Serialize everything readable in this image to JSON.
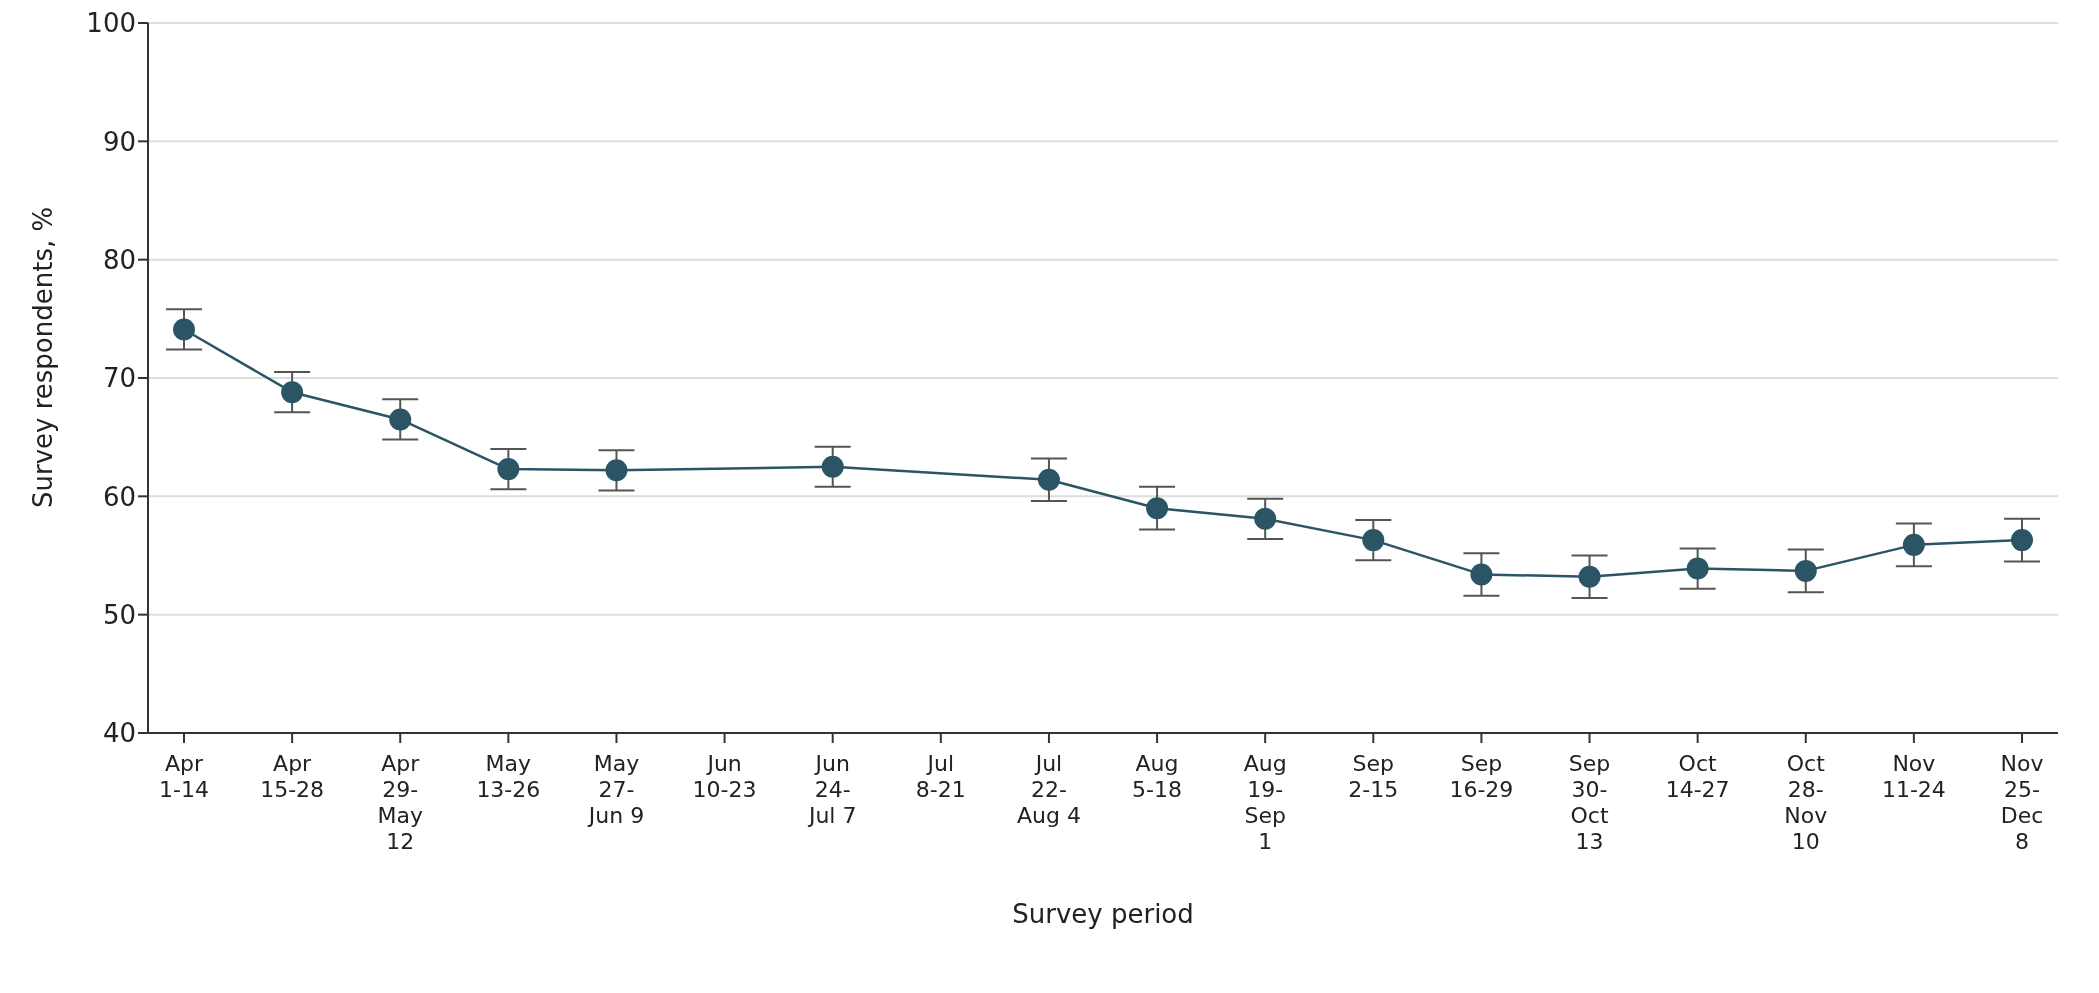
{
  "chart_data": {
    "type": "line",
    "xlabel": "Survey period",
    "ylabel": "Survey respondents, %",
    "categories": [
      "Apr\n1-14",
      "Apr\n15-28",
      "Apr\n29-\nMay\n12",
      "May\n13-26",
      "May\n27-\nJun 9",
      "Jun\n10-23",
      "Jun\n24-\nJul 7",
      "Jul\n8-21",
      "Jul\n22-\nAug 4",
      "Aug\n5-18",
      "Aug\n19-\nSep\n1",
      "Sep\n2-15",
      "Sep\n16-29",
      "Sep\n30-\nOct\n13",
      "Oct\n14-27",
      "Oct\n28-\nNov\n10",
      "Nov\n11-24",
      "Nov\n25-\nDec\n8"
    ],
    "series": [
      {
        "color": "#2b5564",
        "values": [
          74.1,
          68.8,
          66.5,
          62.3,
          62.2,
          null,
          62.5,
          null,
          61.4,
          59.0,
          58.1,
          56.3,
          53.4,
          53.2,
          53.9,
          53.7,
          55.9,
          56.3
        ],
        "errors": [
          1.7,
          1.7,
          1.7,
          1.7,
          1.7,
          null,
          1.7,
          null,
          1.8,
          1.8,
          1.7,
          1.7,
          1.8,
          1.8,
          1.7,
          1.8,
          1.8,
          1.8
        ]
      }
    ],
    "ylim": [
      40,
      100
    ],
    "yticks": [
      40,
      50,
      60,
      70,
      80,
      90,
      100
    ],
    "grid": "y",
    "marker": "circle",
    "line_style": "solid",
    "legend": false
  }
}
